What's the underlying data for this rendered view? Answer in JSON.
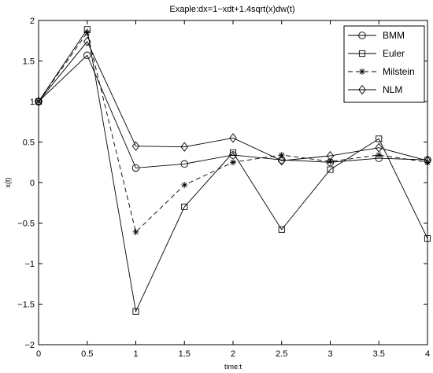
{
  "chart_data": {
    "type": "line",
    "title": "Exaple:dx=1−xdt+1.4sqrt(x)dw(t)",
    "xlabel": "time:t",
    "ylabel": "x(t)",
    "xlim": [
      0,
      4
    ],
    "ylim": [
      -2,
      2
    ],
    "xticks": [
      0,
      0.5,
      1,
      1.5,
      2,
      2.5,
      3,
      3.5,
      4
    ],
    "xtick_labels": [
      "0",
      "0.5",
      "1",
      "1.5",
      "2",
      "2.5",
      "3",
      "3.5",
      "4"
    ],
    "yticks": [
      -2,
      -1.5,
      -1,
      -0.5,
      0,
      0.5,
      1,
      1.5,
      2
    ],
    "ytick_labels": [
      "−2",
      "−1.5",
      "−1",
      "−0.5",
      "0",
      "0.5",
      "1",
      "1.5",
      "2"
    ],
    "grid": false,
    "legend_position": "top-right",
    "line_color": "#000000",
    "series": [
      {
        "name": "BMM",
        "marker": "circle",
        "dash": "solid",
        "x": [
          0,
          0.5,
          1,
          1.5,
          2,
          2.5,
          3,
          3.5,
          4
        ],
        "values": [
          1.0,
          1.57,
          0.18,
          0.23,
          0.34,
          0.28,
          0.25,
          0.3,
          0.28
        ]
      },
      {
        "name": "Euler",
        "marker": "square",
        "dash": "solid",
        "x": [
          0,
          0.5,
          1,
          1.5,
          2,
          2.5,
          3,
          3.5,
          4
        ],
        "values": [
          1.0,
          1.89,
          -1.59,
          -0.3,
          0.37,
          -0.58,
          0.16,
          0.54,
          -0.69
        ]
      },
      {
        "name": "Milstein",
        "marker": "star",
        "dash": "dashed",
        "x": [
          0,
          0.5,
          1,
          1.5,
          2,
          2.5,
          3,
          3.5,
          4
        ],
        "values": [
          1.0,
          1.85,
          -0.61,
          -0.03,
          0.25,
          0.34,
          0.26,
          0.34,
          0.25
        ]
      },
      {
        "name": "NLM",
        "marker": "diamond",
        "dash": "solid",
        "x": [
          0,
          0.5,
          1,
          1.5,
          2,
          2.5,
          3,
          3.5,
          4
        ],
        "values": [
          1.0,
          1.74,
          0.45,
          0.44,
          0.55,
          0.27,
          0.33,
          0.43,
          0.27
        ]
      }
    ]
  }
}
